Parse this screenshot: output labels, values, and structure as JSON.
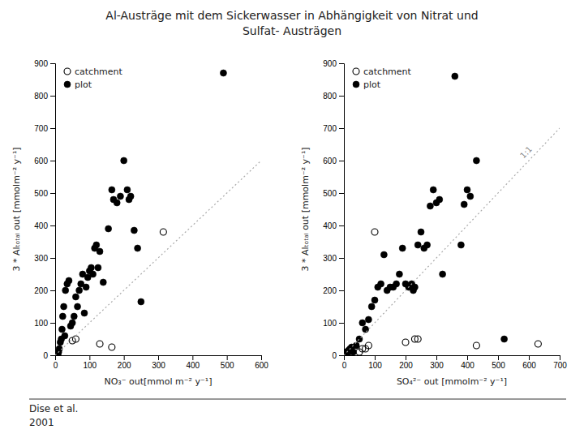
{
  "title": [
    "Al-Austräge mit dem Sickerwasser in Abhängigkeit von Nitrat und",
    "Sulfat- Austrägen"
  ],
  "annotations": [
    "Dise et al.",
    "2001"
  ],
  "chart_data": [
    {
      "type": "scatter",
      "xlabel": "NO₃⁻ out[mmol m⁻² y⁻¹]",
      "ylabel": "3 * Alₜₒₜₐₗ out [mmolm⁻² y⁻¹]",
      "xlim": [
        0,
        600
      ],
      "ylim": [
        0,
        900
      ],
      "xticks": [
        0,
        100,
        200,
        300,
        400,
        500,
        600
      ],
      "yticks": [
        0,
        100,
        200,
        300,
        400,
        500,
        600,
        700,
        800,
        900
      ],
      "grid": false,
      "legend": "upper left",
      "series": [
        {
          "name": "catchment",
          "color": "#000000",
          "marker": "circle-open",
          "x": [
            50,
            60,
            130,
            165,
            315
          ],
          "values": [
            45,
            50,
            35,
            25,
            380
          ]
        },
        {
          "name": "plot",
          "color": "#000000",
          "marker": "circle",
          "x": [
            5,
            8,
            10,
            12,
            15,
            18,
            20,
            22,
            25,
            28,
            30,
            35,
            40,
            45,
            50,
            55,
            60,
            65,
            70,
            75,
            80,
            85,
            90,
            95,
            100,
            105,
            110,
            115,
            120,
            125,
            130,
            140,
            155,
            165,
            170,
            180,
            190,
            200,
            210,
            215,
            220,
            230,
            240,
            250,
            490
          ],
          "values": [
            5,
            0,
            10,
            20,
            40,
            50,
            80,
            120,
            150,
            60,
            200,
            220,
            230,
            90,
            100,
            120,
            180,
            150,
            200,
            220,
            250,
            130,
            210,
            240,
            260,
            270,
            250,
            330,
            340,
            270,
            320,
            225,
            390,
            510,
            480,
            470,
            490,
            600,
            510,
            480,
            490,
            385,
            330,
            165,
            870
          ]
        },
        {
          "type": "line",
          "color": "#aaaaaa",
          "line_style": "dotted",
          "x": [
            0,
            600
          ],
          "values": [
            0,
            600
          ]
        }
      ]
    },
    {
      "type": "scatter",
      "xlabel": "SO₄²⁻ out [mmolm⁻² y⁻¹]",
      "ylabel": "3 * Alₜₒₜₐₗ out [mmolm⁻² y⁻¹]",
      "xlim": [
        0,
        700
      ],
      "ylim": [
        0,
        900
      ],
      "xticks": [
        0,
        100,
        200,
        300,
        400,
        500,
        600,
        700
      ],
      "yticks": [
        0,
        100,
        200,
        300,
        400,
        500,
        600,
        700,
        800,
        900
      ],
      "grid": false,
      "legend": "upper left",
      "annotations": [
        "1:1"
      ],
      "series": [
        {
          "name": "catchment",
          "color": "#000000",
          "marker": "circle-open",
          "x": [
            5,
            10,
            15,
            50,
            60,
            70,
            80,
            100,
            200,
            230,
            240,
            430,
            630
          ],
          "values": [
            5,
            10,
            10,
            10,
            20,
            20,
            30,
            380,
            40,
            50,
            50,
            30,
            35
          ]
        },
        {
          "name": "plot",
          "color": "#000000",
          "marker": "circle",
          "x": [
            5,
            8,
            10,
            15,
            20,
            25,
            30,
            40,
            50,
            60,
            70,
            80,
            90,
            100,
            110,
            120,
            130,
            140,
            150,
            160,
            170,
            180,
            190,
            200,
            210,
            220,
            225,
            230,
            240,
            250,
            260,
            270,
            280,
            290,
            300,
            310,
            320,
            360,
            380,
            390,
            400,
            410,
            430,
            520
          ],
          "values": [
            5,
            10,
            0,
            15,
            20,
            25,
            10,
            30,
            50,
            100,
            80,
            110,
            150,
            170,
            210,
            220,
            310,
            200,
            210,
            210,
            220,
            250,
            330,
            220,
            210,
            220,
            200,
            210,
            340,
            380,
            330,
            340,
            460,
            510,
            470,
            480,
            250,
            860,
            340,
            465,
            510,
            490,
            600,
            50
          ]
        },
        {
          "type": "line",
          "color": "#aaaaaa",
          "line_style": "dotted",
          "x": [
            0,
            700
          ],
          "values": [
            0,
            700
          ]
        }
      ]
    }
  ]
}
